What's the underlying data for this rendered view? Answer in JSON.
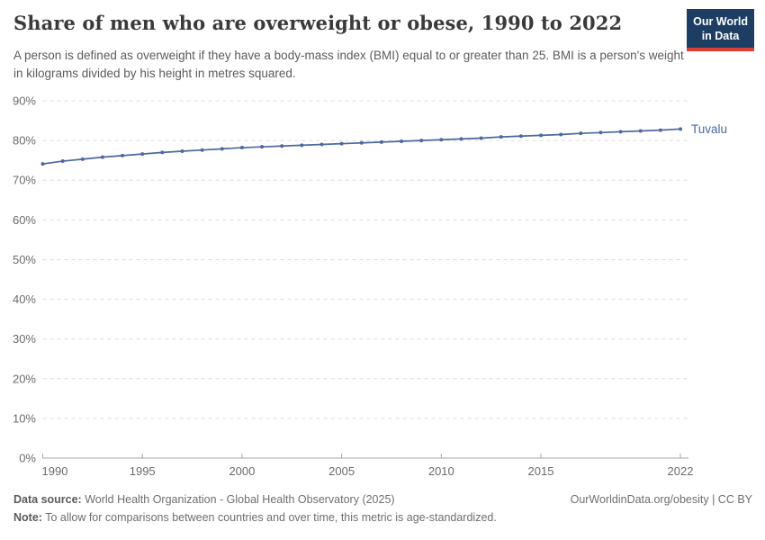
{
  "header": {
    "title": "Share of men who are overweight or obese, 1990 to 2022",
    "subtitle": "A person is defined as overweight if they have a body-mass index (BMI) equal to or greater than 25. BMI is a person's weight in kilograms divided by his height in metres squared.",
    "logo": {
      "line1": "Our World",
      "line2": "in Data",
      "bg_color": "#1d3d63",
      "accent_color": "#dc3f34"
    }
  },
  "chart_data": {
    "type": "line",
    "title": "Share of men who are overweight or obese, 1990 to 2022",
    "xlabel": "",
    "ylabel": "",
    "x": [
      1990,
      1991,
      1992,
      1993,
      1994,
      1995,
      1996,
      1997,
      1998,
      1999,
      2000,
      2001,
      2002,
      2003,
      2004,
      2005,
      2006,
      2007,
      2008,
      2009,
      2010,
      2011,
      2012,
      2013,
      2014,
      2015,
      2016,
      2017,
      2018,
      2019,
      2020,
      2021,
      2022
    ],
    "series": [
      {
        "name": "Tuvalu",
        "color": "#4c6a9c",
        "values": [
          74.1,
          74.8,
          75.3,
          75.8,
          76.2,
          76.6,
          77.0,
          77.3,
          77.6,
          77.9,
          78.2,
          78.4,
          78.6,
          78.8,
          79.0,
          79.2,
          79.4,
          79.6,
          79.8,
          80.0,
          80.2,
          80.4,
          80.6,
          80.9,
          81.1,
          81.3,
          81.5,
          81.8,
          82.0,
          82.2,
          82.4,
          82.6,
          82.9
        ]
      }
    ],
    "ylim": [
      0,
      90
    ],
    "yticks": [
      0,
      10,
      20,
      30,
      40,
      50,
      60,
      70,
      80,
      90
    ],
    "ytick_suffix": "%",
    "xticks": [
      1990,
      1995,
      2000,
      2005,
      2010,
      2015,
      2022
    ],
    "grid": "horizontal-dashed",
    "legend_position": "end-of-line-label",
    "gridline_color": "#dcdcdc",
    "axis_color": "#a5a5a5",
    "tick_label_color": "#6b6b6b"
  },
  "footer": {
    "datasource_label": "Data source:",
    "datasource_text": " World Health Organization - Global Health Observatory (2025)",
    "rights": "OurWorldinData.org/obesity | CC BY",
    "note_label": "Note:",
    "note_text": " To allow for comparisons between countries and over time, this metric is age-standardized."
  }
}
